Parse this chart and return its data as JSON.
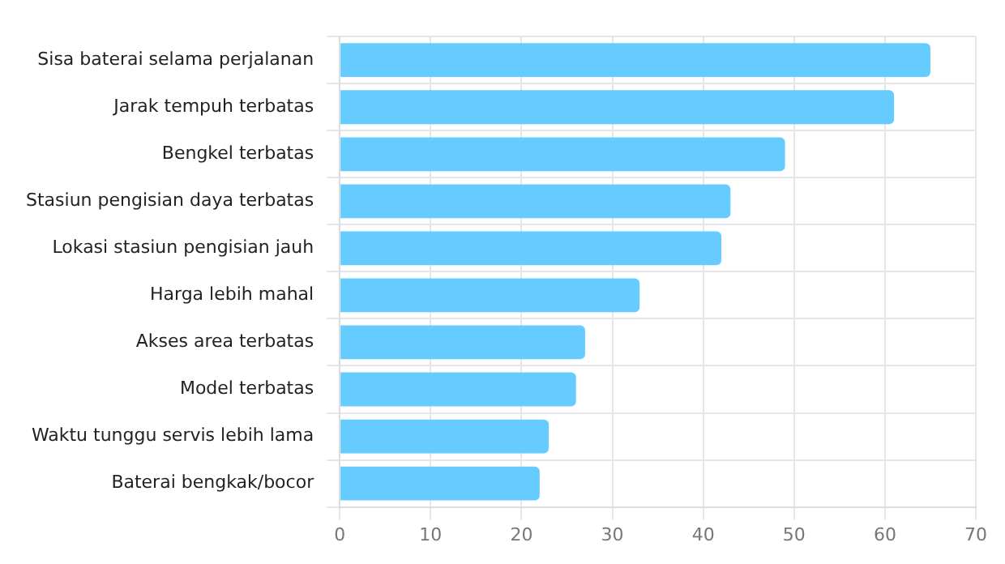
{
  "chart_data": {
    "type": "bar",
    "orientation": "horizontal",
    "categories": [
      "Sisa baterai selama perjalanan",
      "Jarak tempuh terbatas",
      "Bengkel terbatas",
      "Stasiun pengisian daya terbatas",
      "Lokasi stasiun pengisian jauh",
      "Harga lebih mahal",
      "Akses area terbatas",
      "Model terbatas",
      "Waktu tunggu servis lebih lama",
      "Baterai bengkak/bocor"
    ],
    "values": [
      65,
      61,
      49,
      43,
      42,
      33,
      27,
      26,
      23,
      22
    ],
    "color": "#66ccff",
    "xlim": [
      0,
      70
    ],
    "xticks": [
      0,
      10,
      20,
      30,
      40,
      50,
      60,
      70
    ],
    "grid": true,
    "legend": false
  }
}
